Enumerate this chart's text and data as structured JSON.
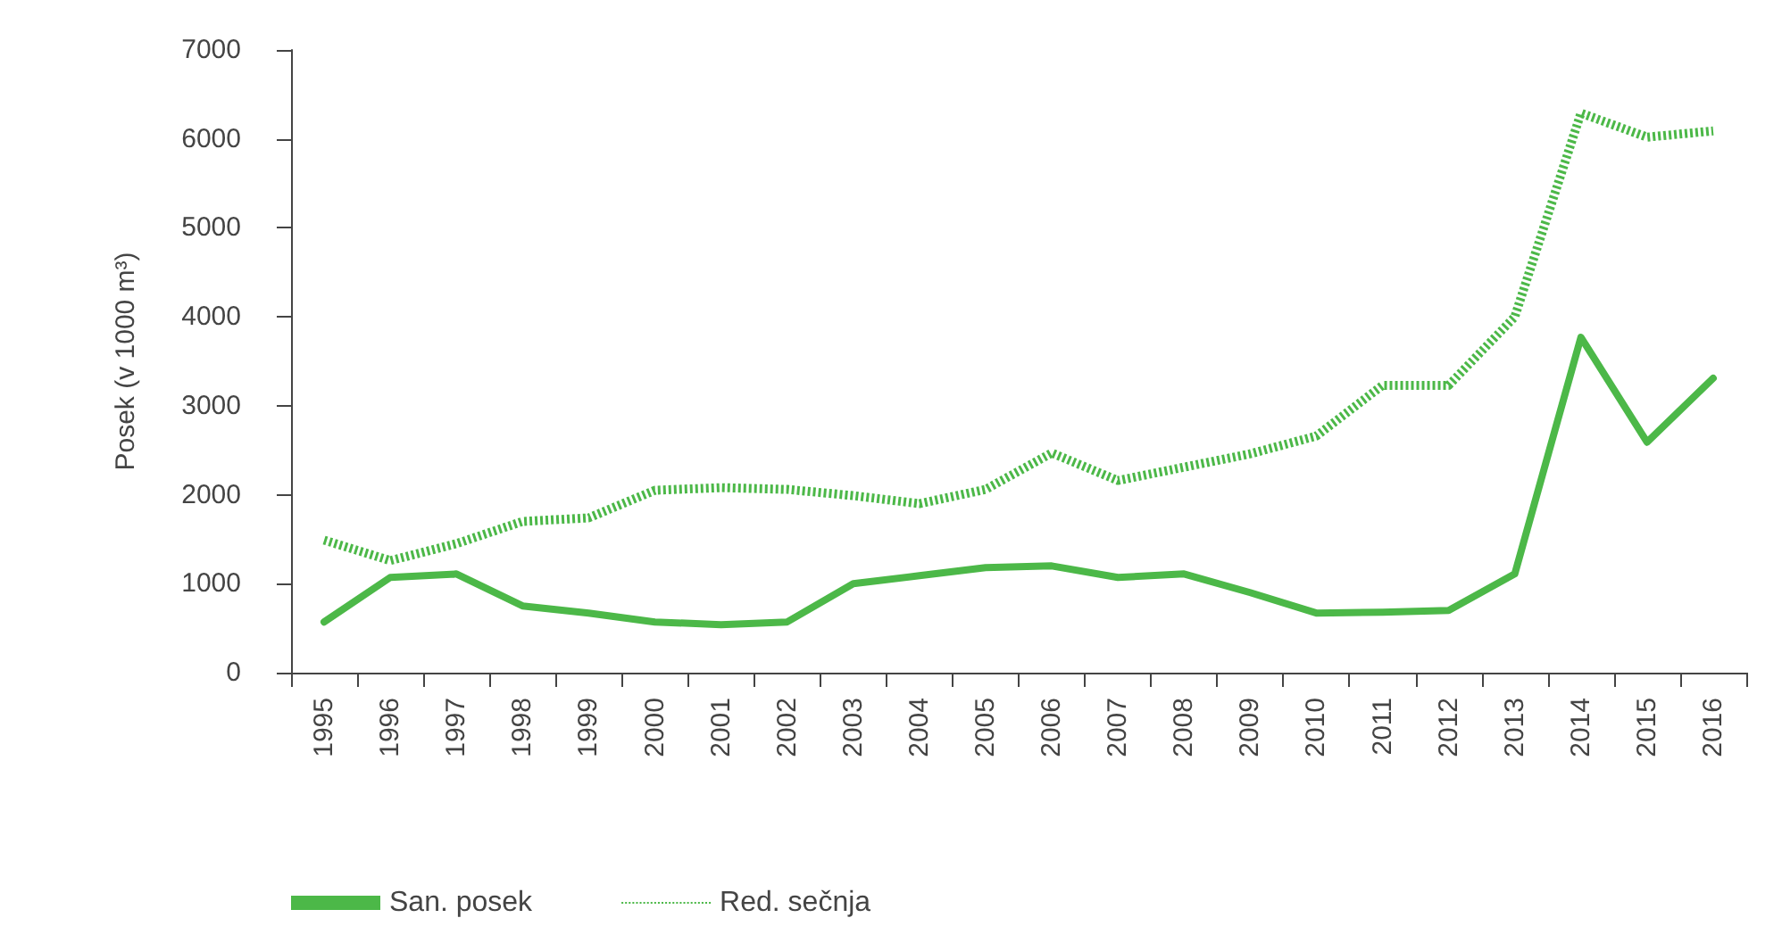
{
  "chart_data": {
    "type": "line",
    "ylabel": "Posek (v 1000 m³)",
    "categories": [
      "1995",
      "1996",
      "1997",
      "1998",
      "1999",
      "2000",
      "2001",
      "2002",
      "2003",
      "2004",
      "2005",
      "2006",
      "2007",
      "2008",
      "2009",
      "2010",
      "2011",
      "2012",
      "2013",
      "2014",
      "2015",
      "2016"
    ],
    "series": [
      {
        "name": "San. posek",
        "color": "#4cb848",
        "line_style": "solid",
        "values": [
          570,
          1070,
          1110,
          750,
          670,
          570,
          540,
          570,
          1000,
          1090,
          1180,
          1200,
          1070,
          1110,
          900,
          670,
          680,
          700,
          1110,
          3770,
          2590,
          3310
        ]
      },
      {
        "name": "Red. sečnja",
        "color": "#4cb848",
        "line_style": "dotted",
        "values": [
          1490,
          1260,
          1450,
          1700,
          1740,
          2050,
          2080,
          2060,
          1990,
          1900,
          2060,
          2470,
          2160,
          2310,
          2460,
          2660,
          3230,
          3230,
          4000,
          6290,
          6020,
          6090
        ]
      }
    ],
    "ylim": [
      0,
      7000
    ],
    "yticks": [
      0,
      1000,
      2000,
      3000,
      4000,
      5000,
      6000,
      7000
    ],
    "grid": false,
    "legend": "bottom left",
    "marker": "none"
  }
}
